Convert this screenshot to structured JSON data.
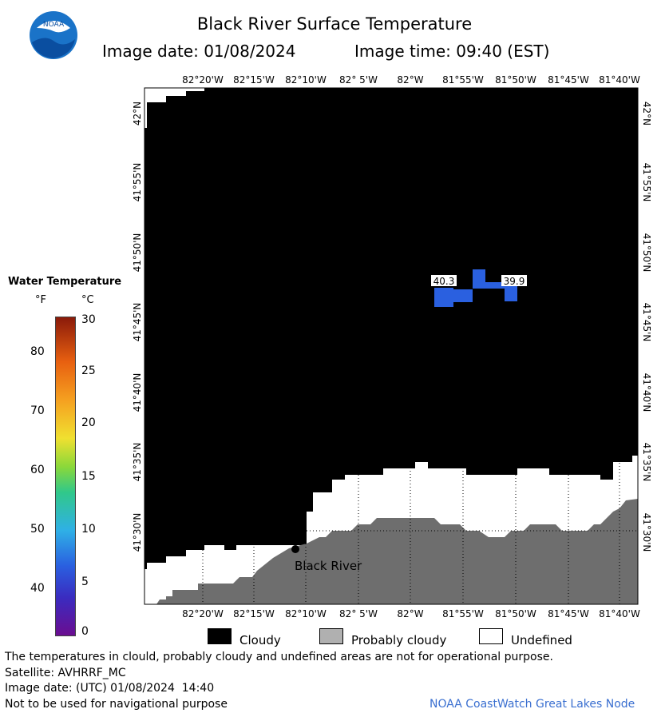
{
  "header": {
    "title": "Black River Surface Temperature",
    "date_label": "Image date: 01/08/2024",
    "time_label": "Image time: 09:40 (EST)",
    "logo_text": "NOAA"
  },
  "legend": {
    "title": "Water Temperature",
    "unit_f": "°F",
    "unit_c": "°C",
    "f_ticks": [
      "80",
      "70",
      "60",
      "50",
      "40"
    ],
    "c_ticks": [
      "30",
      "25",
      "20",
      "15",
      "10",
      "5",
      "0"
    ]
  },
  "map": {
    "lon_labels": [
      "82°20'W",
      "82°15'W",
      "82°10'W",
      "82° 5'W",
      "82°W",
      "81°55'W",
      "81°50'W",
      "81°45'W",
      "81°40'W"
    ],
    "lat_labels": [
      "42°N",
      "41°55'N",
      "41°50'N",
      "41°45'N",
      "41°40'N",
      "41°35'N",
      "41°30'N"
    ],
    "place_label": "Black River",
    "readings": [
      "40.3",
      "39.9"
    ],
    "colors": {
      "cloudy": "#000000",
      "probably_cloudy": "#6e6e6e",
      "undefined": "#ffffff",
      "water": "#2a60e0"
    }
  },
  "key": {
    "cloudy": "Cloudy",
    "probably_cloudy": "Probably cloudy",
    "undefined": "Undefined"
  },
  "footer": {
    "disclaimer": "The temperatures in clould, probably cloudy and undefined areas are not for operational purpose.",
    "satellite": "Satellite: AVHRRF_MC",
    "utc_date": "Image date: (UTC) 01/08/2024  14:40",
    "nav_warning": "Not to be used for navigational purpose",
    "credit": "NOAA CoastWatch Great Lakes Node"
  }
}
